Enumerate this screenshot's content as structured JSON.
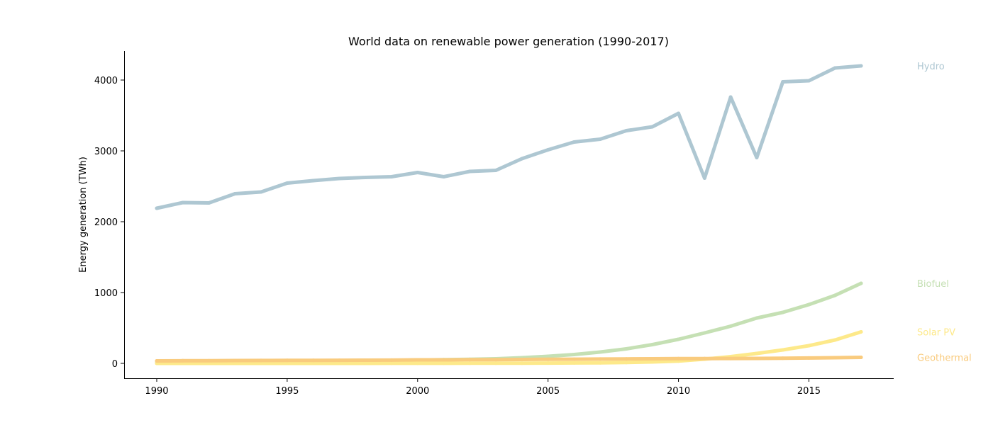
{
  "chart_data": {
    "type": "line",
    "title": "World data on renewable power generation (1990-2017)",
    "xlabel": "",
    "ylabel": "Energy generation (TWh)",
    "xlim": [
      1988.75,
      2018.25
    ],
    "ylim": [
      -210,
      4410
    ],
    "x_ticks": [
      1990,
      1995,
      2000,
      2005,
      2010,
      2015
    ],
    "y_ticks": [
      0,
      1000,
      2000,
      3000,
      4000
    ],
    "grid": false,
    "legend": "labels at right end of lines",
    "x": [
      1990,
      1991,
      1992,
      1993,
      1994,
      1995,
      1996,
      1997,
      1998,
      1999,
      2000,
      2001,
      2002,
      2003,
      2004,
      2005,
      2006,
      2007,
      2008,
      2009,
      2010,
      2011,
      2012,
      2013,
      2014,
      2015,
      2016,
      2017
    ],
    "series": [
      {
        "name": "Hydro",
        "color": "#aec7d2",
        "values": [
          2190,
          2270,
          2265,
          2395,
          2420,
          2545,
          2580,
          2610,
          2625,
          2635,
          2695,
          2635,
          2710,
          2725,
          2890,
          3015,
          3125,
          3165,
          3285,
          3340,
          3530,
          2615,
          3760,
          2905,
          3975,
          3990,
          4170,
          4200
        ]
      },
      {
        "name": "Biofuel",
        "color": "#c5e0b4",
        "values": [
          10,
          12,
          14,
          17,
          20,
          23,
          27,
          31,
          36,
          41,
          47,
          52,
          58,
          65,
          80,
          100,
          125,
          160,
          205,
          265,
          340,
          430,
          525,
          640,
          720,
          830,
          960,
          1130
        ]
      },
      {
        "name": "Solar PV",
        "color": "#fde98a",
        "values": [
          0,
          0,
          0,
          0,
          0,
          0,
          0,
          0,
          0,
          1,
          1,
          1,
          2,
          2,
          3,
          4,
          6,
          8,
          12,
          20,
          32,
          60,
          95,
          140,
          190,
          250,
          330,
          445
        ]
      },
      {
        "name": "Geothermal",
        "color": "#f9cb7e",
        "values": [
          35,
          37,
          38,
          40,
          41,
          42,
          43,
          44,
          45,
          46,
          50,
          50,
          52,
          53,
          55,
          58,
          59,
          61,
          63,
          65,
          67,
          68,
          69,
          70,
          73,
          76,
          80,
          85
        ]
      }
    ]
  }
}
